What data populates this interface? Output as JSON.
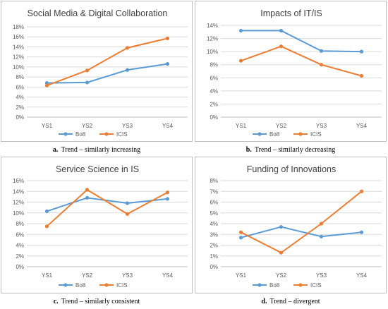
{
  "chart_data": [
    {
      "id": "a",
      "type": "line",
      "title": "Social Media & Digital Collaboration",
      "categories": [
        "YS1",
        "YS2",
        "YS3",
        "YS4"
      ],
      "ylim": [
        0,
        18
      ],
      "yticks": [
        "0%",
        "2%",
        "4%",
        "6%",
        "8%",
        "10%",
        "12%",
        "14%",
        "16%",
        "18%"
      ],
      "series": [
        {
          "name": "Bo8",
          "color": "#5b9bd5",
          "values": [
            6.8,
            6.9,
            9.4,
            10.6
          ]
        },
        {
          "name": "ICIS",
          "color": "#ed7d31",
          "values": [
            6.3,
            9.3,
            13.8,
            15.7
          ]
        }
      ],
      "caption_letter": "a.",
      "caption_text": "Trend – similarly increasing"
    },
    {
      "id": "b",
      "type": "line",
      "title": "Impacts of IT/IS",
      "categories": [
        "YS1",
        "YS2",
        "YS3",
        "YS4"
      ],
      "ylim": [
        0,
        14
      ],
      "yticks": [
        "0%",
        "2%",
        "4%",
        "6%",
        "8%",
        "10%",
        "12%",
        "14%"
      ],
      "series": [
        {
          "name": "Bo8",
          "color": "#5b9bd5",
          "values": [
            13.2,
            13.2,
            10.1,
            10.0
          ]
        },
        {
          "name": "ICIS",
          "color": "#ed7d31",
          "values": [
            8.6,
            10.8,
            8.0,
            6.3
          ]
        }
      ],
      "caption_letter": "b.",
      "caption_text": "Trend – similarly decreasing"
    },
    {
      "id": "c",
      "type": "line",
      "title": "Service Science in IS",
      "categories": [
        "YS1",
        "YS2",
        "YS3",
        "YS4"
      ],
      "ylim": [
        0,
        16
      ],
      "yticks": [
        "0%",
        "2%",
        "4%",
        "6%",
        "8%",
        "10%",
        "12%",
        "14%",
        "16%"
      ],
      "series": [
        {
          "name": "Bo8",
          "color": "#5b9bd5",
          "values": [
            10.3,
            12.8,
            11.8,
            12.6
          ]
        },
        {
          "name": "ICIS",
          "color": "#ed7d31",
          "values": [
            7.5,
            14.3,
            9.8,
            13.8
          ]
        }
      ],
      "caption_letter": "c.",
      "caption_text": "Trend – similarly consistent"
    },
    {
      "id": "d",
      "type": "line",
      "title": "Funding of Innovations",
      "categories": [
        "YS1",
        "YS2",
        "YS3",
        "YS4"
      ],
      "ylim": [
        0,
        8
      ],
      "yticks": [
        "0%",
        "1%",
        "2%",
        "3%",
        "4%",
        "5%",
        "6%",
        "7%",
        "8%"
      ],
      "series": [
        {
          "name": "Bo8",
          "color": "#5b9bd5",
          "values": [
            2.7,
            3.7,
            2.8,
            3.2
          ]
        },
        {
          "name": "ICIS",
          "color": "#ed7d31",
          "values": [
            3.2,
            1.3,
            4.0,
            7.0
          ]
        }
      ],
      "caption_letter": "d.",
      "caption_text": "Trend – divergent"
    }
  ]
}
